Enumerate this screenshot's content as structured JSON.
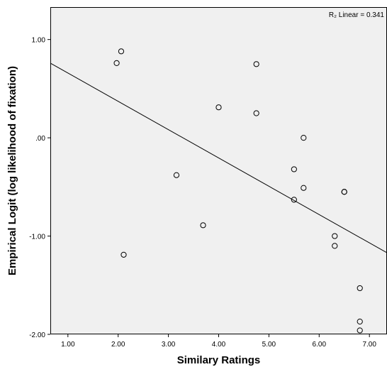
{
  "chart_data": {
    "type": "scatter",
    "title": "",
    "xlabel": "Similary Ratings",
    "ylabel": "Empirical Logit (log likelihood of fixation)",
    "xlim": [
      0.65,
      7.35
    ],
    "ylim": [
      -2.0,
      1.33
    ],
    "xticks": [
      1.0,
      2.0,
      3.0,
      4.0,
      5.0,
      6.0,
      7.0
    ],
    "xtick_labels": [
      "1.00",
      "2.00",
      "3.00",
      "4.00",
      "5.00",
      "6.00",
      "7.00"
    ],
    "yticks": [
      1.0,
      0.0,
      -1.0,
      -2.0
    ],
    "ytick_labels": [
      "1.00",
      ".00",
      "-1.00",
      "-2.00"
    ],
    "grid": false,
    "points": [
      {
        "x": 1.97,
        "y": 0.76
      },
      {
        "x": 2.06,
        "y": 0.88
      },
      {
        "x": 2.11,
        "y": -1.19
      },
      {
        "x": 3.16,
        "y": -0.38
      },
      {
        "x": 3.69,
        "y": -0.89
      },
      {
        "x": 4.0,
        "y": 0.31
      },
      {
        "x": 4.75,
        "y": 0.75
      },
      {
        "x": 4.75,
        "y": 0.25
      },
      {
        "x": 5.5,
        "y": -0.32
      },
      {
        "x": 5.5,
        "y": -0.63
      },
      {
        "x": 5.69,
        "y": 0.0
      },
      {
        "x": 5.69,
        "y": -0.51
      },
      {
        "x": 6.31,
        "y": -1.0
      },
      {
        "x": 6.31,
        "y": -1.1
      },
      {
        "x": 6.5,
        "y": -0.55
      },
      {
        "x": 6.5,
        "y": -0.55
      },
      {
        "x": 6.81,
        "y": -1.53
      },
      {
        "x": 6.81,
        "y": -1.87
      },
      {
        "x": 6.81,
        "y": -1.96
      }
    ],
    "fit_line": {
      "x": [
        0.65,
        7.35
      ],
      "y": [
        0.76,
        -1.17
      ]
    },
    "annotation": "R₂ Linear = 0.341"
  }
}
